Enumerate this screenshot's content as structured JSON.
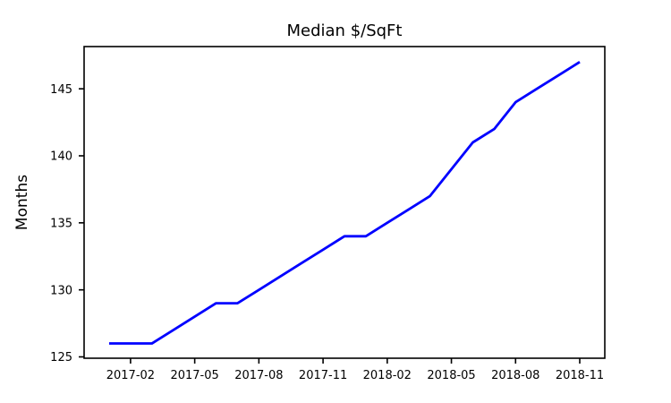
{
  "figure": {
    "background": "#ffffff"
  },
  "chart_data": {
    "type": "line",
    "title": "Median $/SqFt",
    "xlabel": "",
    "ylabel": "Months",
    "x": [
      "2017-01",
      "2017-02",
      "2017-03",
      "2017-04",
      "2017-05",
      "2017-06",
      "2017-07",
      "2017-08",
      "2017-09",
      "2017-10",
      "2017-11",
      "2017-12",
      "2018-01",
      "2018-02",
      "2018-03",
      "2018-04",
      "2018-05",
      "2018-06",
      "2018-07",
      "2018-08",
      "2018-09",
      "2018-10",
      "2018-11"
    ],
    "values": [
      126,
      126,
      126,
      127,
      128,
      129,
      129,
      130,
      131,
      132,
      133,
      134,
      134,
      135,
      136,
      137,
      139,
      141,
      142,
      144,
      145,
      146,
      147
    ],
    "xtick_labels": [
      "2017-02",
      "2017-05",
      "2017-08",
      "2017-11",
      "2018-02",
      "2018-05",
      "2018-08",
      "2018-11"
    ],
    "ytick_values": [
      125,
      130,
      135,
      140,
      145
    ],
    "ylim": [
      124.9,
      148.15
    ],
    "grid": false,
    "legend": null,
    "line_color": "#0000ff",
    "axis_color": "#000000"
  }
}
